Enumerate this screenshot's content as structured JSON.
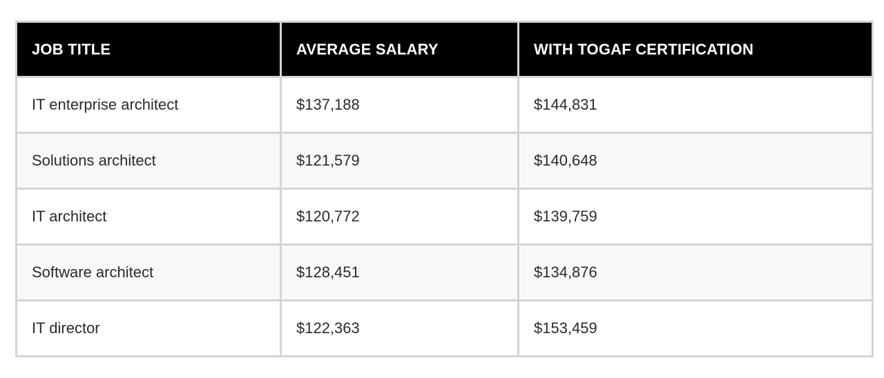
{
  "table": {
    "headers": [
      "JOB TITLE",
      "AVERAGE SALARY",
      "WITH TOGAF CERTIFICATION"
    ],
    "rows": [
      [
        "IT enterprise architect",
        "$137,188",
        "$144,831"
      ],
      [
        "Solutions architect",
        "$121,579",
        "$140,648"
      ],
      [
        "IT architect",
        "$120,772",
        "$139,759"
      ],
      [
        "Software architect",
        "$128,451",
        "$134,876"
      ],
      [
        "IT director",
        "$122,363",
        "$153,459"
      ]
    ]
  },
  "colors": {
    "header_bg": "#000000",
    "header_text": "#ffffff",
    "border": "#d4d4d4",
    "row_alt_bg": "#f8f8f8"
  }
}
